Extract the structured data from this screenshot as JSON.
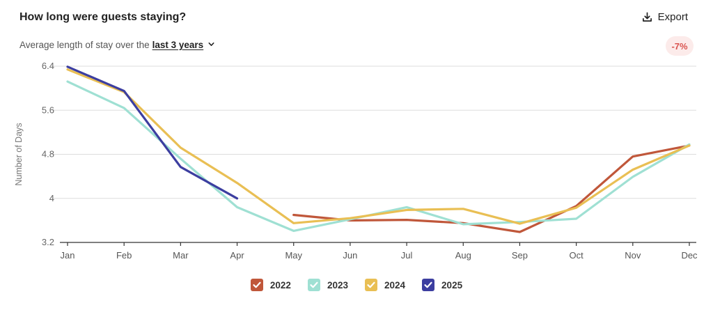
{
  "header": {
    "title": "How long were guests staying?",
    "export_label": "Export",
    "subtitle_prefix": "Average length of stay over the",
    "range_label": "last 3 years",
    "change_badge": "-7%",
    "badge_color": "#d9534f",
    "icons": {
      "export": "download-icon",
      "dropdown": "chevron-down-icon"
    }
  },
  "chart_data": {
    "type": "line",
    "ylabel": "Number of Days",
    "xlabel": "",
    "ylim": [
      3.2,
      6.4
    ],
    "yticks": [
      3.2,
      4,
      4.8,
      5.6,
      6.4
    ],
    "ytick_labels": [
      "3.2",
      "4",
      "4.8",
      "5.6",
      "6.4"
    ],
    "grid": "horizontal",
    "legend_position": "bottom",
    "categories": [
      "Jan",
      "Feb",
      "Mar",
      "Apr",
      "May",
      "Jun",
      "Jul",
      "Aug",
      "Sep",
      "Oct",
      "Nov",
      "Dec"
    ],
    "series": [
      {
        "name": "2022",
        "color": "#c0573a",
        "values": [
          null,
          null,
          null,
          null,
          3.7,
          3.6,
          3.61,
          3.55,
          3.39,
          3.86,
          4.76,
          4.96
        ]
      },
      {
        "name": "2023",
        "color": "#9fe0d3",
        "values": [
          6.12,
          5.64,
          4.72,
          3.84,
          3.41,
          3.62,
          3.84,
          3.53,
          3.57,
          3.63,
          4.39,
          4.98
        ]
      },
      {
        "name": "2024",
        "color": "#e9bf54",
        "values": [
          6.34,
          5.93,
          4.92,
          4.28,
          3.55,
          3.64,
          3.79,
          3.81,
          3.54,
          3.83,
          4.52,
          4.96
        ]
      },
      {
        "name": "2025",
        "color": "#3c3ea0",
        "values": [
          6.39,
          5.95,
          4.57,
          4.0,
          null,
          null,
          null,
          null,
          null,
          null,
          null,
          null
        ]
      }
    ]
  }
}
